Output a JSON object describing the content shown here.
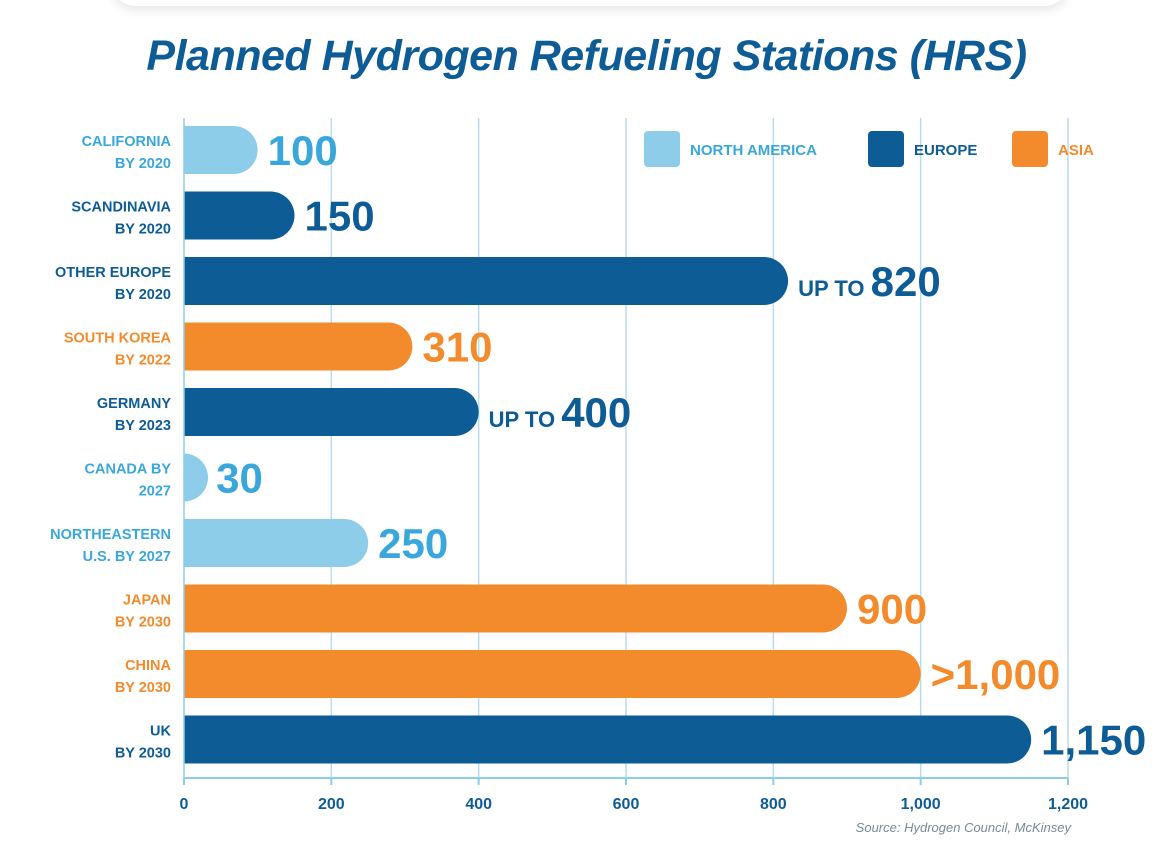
{
  "chart_data": {
    "type": "bar",
    "orientation": "horizontal",
    "title": "Planned Hydrogen Refueling Stations (HRS)",
    "source": "Source: Hydrogen Council, McKinsey",
    "xlim": [
      0,
      1200
    ],
    "xticks": [
      0,
      200,
      400,
      600,
      800,
      1000,
      1200
    ],
    "xtick_labels": [
      "0",
      "200",
      "400",
      "600",
      "800",
      "1,000",
      "1,200"
    ],
    "grid": "vertical",
    "legend_position": "top-right",
    "legend": [
      {
        "label": "NORTH AMERICA",
        "color": "#8dcdea"
      },
      {
        "label": "EUROPE",
        "color": "#0d5c96"
      },
      {
        "label": "ASIA",
        "color": "#f38b2c"
      }
    ],
    "categories": [
      {
        "line1": "CALIFORNIA",
        "line2": "BY 2020",
        "value": 100,
        "prefix": "",
        "display": "100",
        "region": "NORTH AMERICA"
      },
      {
        "line1": "SCANDINAVIA",
        "line2": "BY 2020",
        "value": 150,
        "prefix": "",
        "display": "150",
        "region": "EUROPE"
      },
      {
        "line1": "OTHER EUROPE",
        "line2": "BY 2020",
        "value": 820,
        "prefix": "UP TO",
        "display": "820",
        "region": "EUROPE"
      },
      {
        "line1": "SOUTH KOREA",
        "line2": "BY 2022",
        "value": 310,
        "prefix": "",
        "display": "310",
        "region": "ASIA"
      },
      {
        "line1": "GERMANY",
        "line2": "BY 2023",
        "value": 400,
        "prefix": "UP TO",
        "display": "400",
        "region": "EUROPE"
      },
      {
        "line1": "CANADA BY",
        "line2": "2027",
        "value": 30,
        "prefix": "",
        "display": "30",
        "region": "NORTH AMERICA"
      },
      {
        "line1": "NORTHEASTERN",
        "line2": "U.S. BY 2027",
        "value": 250,
        "prefix": "",
        "display": "250",
        "region": "NORTH AMERICA"
      },
      {
        "line1": "JAPAN",
        "line2": "BY 2030",
        "value": 900,
        "prefix": "",
        "display": "900",
        "region": "ASIA"
      },
      {
        "line1": "CHINA",
        "line2": "BY 2030",
        "value": 1000,
        "prefix": "",
        "display": ">1,000",
        "region": "ASIA"
      },
      {
        "line1": "UK",
        "line2": "BY 2030",
        "value": 1150,
        "prefix": "",
        "display": "1,150",
        "region": "EUROPE"
      }
    ]
  }
}
